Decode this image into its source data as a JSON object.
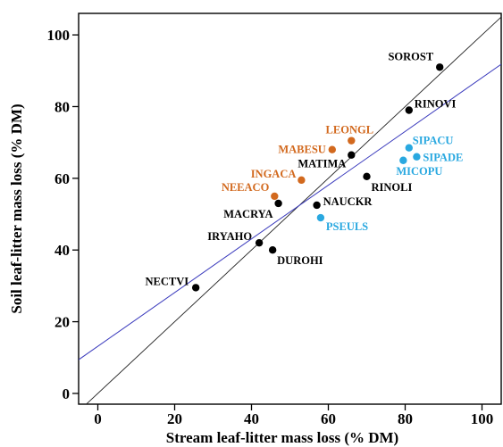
{
  "chart_data": {
    "type": "scatter",
    "title": "",
    "xlabel": "Stream leaf-litter mass loss (% DM)",
    "ylabel": "Soil leaf-litter mass loss (% DM)",
    "xlim": [
      -5,
      105
    ],
    "ylim": [
      -3,
      106
    ],
    "xticks": [
      0,
      20,
      40,
      60,
      80,
      100
    ],
    "yticks": [
      0,
      20,
      40,
      60,
      80,
      100
    ],
    "grid": false,
    "legend": "none",
    "colors": {
      "black": "#000000",
      "orange": "#d2691e",
      "blue": "#29a8e0",
      "fit_line": "#3b3bbd",
      "identity_line": "#222222"
    },
    "lines": [
      {
        "style": "identity",
        "color": "identity_line",
        "x": [
          -5,
          105
        ],
        "y": [
          -5,
          105
        ]
      },
      {
        "style": "regression",
        "color": "fit_line",
        "x": [
          -5,
          105
        ],
        "y": [
          9.4,
          91.8
        ]
      }
    ],
    "points": [
      {
        "label": "SOROST",
        "x": 89,
        "y": 91,
        "color": "black"
      },
      {
        "label": "RINOVI",
        "x": 81,
        "y": 79,
        "color": "black"
      },
      {
        "label": "LEONGL",
        "x": 66,
        "y": 70.5,
        "color": "orange"
      },
      {
        "label": "MABESU",
        "x": 61,
        "y": 68,
        "color": "orange"
      },
      {
        "label": "MATIMA",
        "x": 66,
        "y": 66.5,
        "color": "black"
      },
      {
        "label": "SIPACU",
        "x": 81,
        "y": 68.5,
        "color": "blue"
      },
      {
        "label": "SIPADE",
        "x": 83,
        "y": 66,
        "color": "blue"
      },
      {
        "label": "MICOPU",
        "x": 79.5,
        "y": 65,
        "color": "blue"
      },
      {
        "label": "RINOLI",
        "x": 70,
        "y": 60.5,
        "color": "black"
      },
      {
        "label": "INGACA",
        "x": 53,
        "y": 59.5,
        "color": "orange"
      },
      {
        "label": "NEEACO",
        "x": 46,
        "y": 55,
        "color": "orange"
      },
      {
        "label": "MACRYA",
        "x": 47,
        "y": 53,
        "color": "black"
      },
      {
        "label": "NAUCKR",
        "x": 57,
        "y": 52.5,
        "color": "black"
      },
      {
        "label": "PSEULS",
        "x": 58,
        "y": 49,
        "color": "blue"
      },
      {
        "label": "IRYAHO",
        "x": 42,
        "y": 42,
        "color": "black"
      },
      {
        "label": "DUROHI",
        "x": 45.5,
        "y": 40,
        "color": "black"
      },
      {
        "label": "NECTVI",
        "x": 25.5,
        "y": 29.5,
        "color": "black"
      }
    ]
  }
}
